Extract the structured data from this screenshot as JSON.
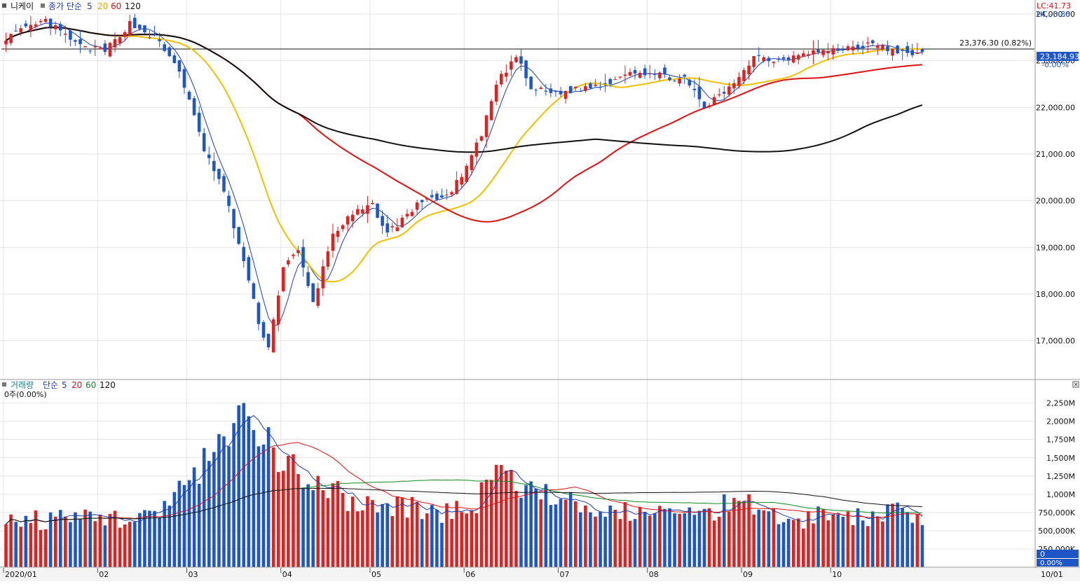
{
  "price_panel": {
    "legend": {
      "symbol": "니케이",
      "ma_label": "종가 단순",
      "periods": [
        "5",
        "20",
        "60",
        "120"
      ],
      "colors": [
        "#1e3caa",
        "#f0c000",
        "#dd1111",
        "#111111"
      ]
    },
    "corner": {
      "lc": "LC:41.73",
      "hc": "HC:-3.86"
    },
    "ref_line_label": "23,376.30 (0.82%)",
    "current_label": "23,184.93",
    "current_pct": "-0.00%",
    "y_labels": [
      "24,000.00",
      "23,000.00",
      "22,000.00",
      "21,000.00",
      "20,000.00",
      "19,000.00",
      "18,000.00",
      "17,000.00"
    ]
  },
  "volume_panel": {
    "legend": {
      "title": "거래량",
      "ma_label": "단순",
      "periods": [
        "5",
        "20",
        "60",
        "120"
      ],
      "colors": [
        "#1e3caa",
        "#dd1111",
        "#118822",
        "#111111"
      ]
    },
    "sub_label": "0주(0.00%)",
    "y_labels": [
      "2,250M",
      "2,000M",
      "1,750M",
      "1,500M",
      "1,250M",
      "1,000M",
      "750,000K",
      "500,000K",
      "250,000K"
    ],
    "current_value": "0",
    "current_pct": "0.00%"
  },
  "x_axis": {
    "labels": [
      "2020/01",
      "02",
      "03",
      "04",
      "05",
      "06",
      "07",
      "08",
      "09",
      "10"
    ],
    "right_label": "10/01"
  },
  "colors": {
    "up": "#dd2222",
    "down": "#1e56c8",
    "grid": "#e4e4e4",
    "axis_box": "#1e56c8"
  },
  "chart_data": [
    {
      "type": "candlestick",
      "title": "니케이",
      "ylim": [
        16200,
        24300
      ],
      "y_ticks": [
        17000,
        18000,
        19000,
        20000,
        21000,
        22000,
        23000,
        24000
      ],
      "reference_line": 23376.3,
      "current_value": 23184.93,
      "month_starts": [
        "2020/01",
        "02",
        "03",
        "04",
        "05",
        "06",
        "07",
        "08",
        "09",
        "10"
      ],
      "close_anchors": [
        [
          0,
          23500
        ],
        [
          8,
          23850
        ],
        [
          15,
          23300
        ],
        [
          20,
          23200
        ],
        [
          25,
          23800
        ],
        [
          30,
          23500
        ],
        [
          35,
          22800
        ],
        [
          40,
          21100
        ],
        [
          44,
          20200
        ],
        [
          48,
          18700
        ],
        [
          51,
          17400
        ],
        [
          53,
          16850
        ],
        [
          56,
          18600
        ],
        [
          59,
          18900
        ],
        [
          62,
          17800
        ],
        [
          66,
          19300
        ],
        [
          70,
          19700
        ],
        [
          74,
          19900
        ],
        [
          77,
          19300
        ],
        [
          80,
          19600
        ],
        [
          85,
          20100
        ],
        [
          88,
          20000
        ],
        [
          92,
          20500
        ],
        [
          96,
          21400
        ],
        [
          99,
          22500
        ],
        [
          103,
          23100
        ],
        [
          106,
          22400
        ],
        [
          111,
          22300
        ],
        [
          116,
          22400
        ],
        [
          121,
          22500
        ],
        [
          126,
          22800
        ],
        [
          131,
          22700
        ],
        [
          137,
          22600
        ],
        [
          141,
          22000
        ],
        [
          146,
          22400
        ],
        [
          151,
          23100
        ],
        [
          156,
          23000
        ],
        [
          161,
          23200
        ],
        [
          166,
          23200
        ],
        [
          171,
          23300
        ],
        [
          176,
          23350
        ],
        [
          180,
          23150
        ],
        [
          185,
          23184.93
        ]
      ],
      "ma_periods": [
        5,
        20,
        60,
        120
      ],
      "ma_colors": [
        "#1e3caa",
        "#f0c000",
        "#dd1111",
        "#111111"
      ]
    },
    {
      "type": "bar",
      "title": "거래량",
      "ylim": [
        0,
        2400
      ],
      "y_unit": "M shares",
      "y_ticks": [
        250,
        500,
        750,
        1000,
        1250,
        1500,
        1750,
        2000,
        2250
      ],
      "volume_anchors": [
        [
          0,
          650
        ],
        [
          10,
          650
        ],
        [
          20,
          680
        ],
        [
          30,
          700
        ],
        [
          36,
          1100
        ],
        [
          40,
          1350
        ],
        [
          44,
          1700
        ],
        [
          47,
          1900
        ],
        [
          49,
          2000
        ],
        [
          52,
          1650
        ],
        [
          56,
          1450
        ],
        [
          60,
          1150
        ],
        [
          66,
          1000
        ],
        [
          72,
          880
        ],
        [
          80,
          830
        ],
        [
          88,
          780
        ],
        [
          94,
          760
        ],
        [
          97,
          1150
        ],
        [
          100,
          1300
        ],
        [
          106,
          1000
        ],
        [
          112,
          880
        ],
        [
          120,
          800
        ],
        [
          130,
          760
        ],
        [
          140,
          700
        ],
        [
          145,
          880
        ],
        [
          150,
          950
        ],
        [
          158,
          620
        ],
        [
          165,
          720
        ],
        [
          172,
          700
        ],
        [
          180,
          730
        ],
        [
          185,
          720
        ]
      ],
      "ma_periods": [
        5,
        20,
        60,
        120
      ],
      "ma_colors": [
        "#1e3caa",
        "#dd1111",
        "#118822",
        "#111111"
      ]
    }
  ]
}
